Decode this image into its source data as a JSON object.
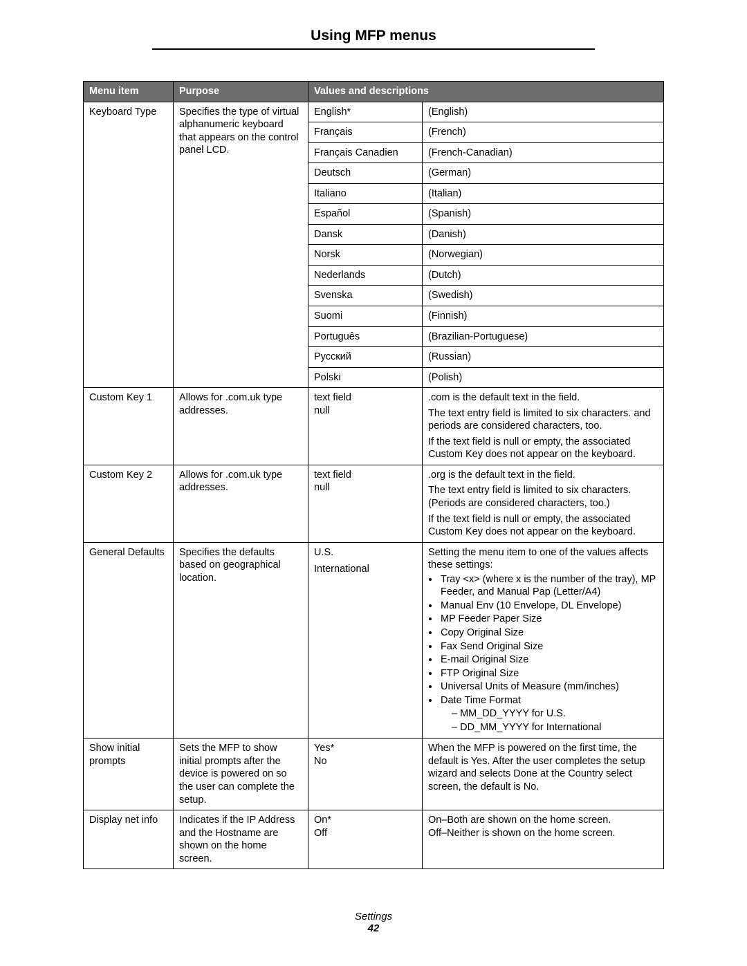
{
  "title": "Using MFP menus",
  "headers": {
    "menu_item": "Menu item",
    "purpose": "Purpose",
    "values": "Values and descriptions"
  },
  "rows": {
    "keyboard_type": {
      "menu_item": "Keyboard Type",
      "purpose": "Specifies the type of virtual alphanumeric keyboard that appears on the control panel LCD.",
      "langs": [
        {
          "value": "English*",
          "desc": "(English)"
        },
        {
          "value": "Français",
          "desc": "(French)"
        },
        {
          "value": "Français Canadien",
          "desc": "(French-Canadian)"
        },
        {
          "value": "Deutsch",
          "desc": "(German)"
        },
        {
          "value": "Italiano",
          "desc": "(Italian)"
        },
        {
          "value": "Español",
          "desc": "(Spanish)"
        },
        {
          "value": "Dansk",
          "desc": "(Danish)"
        },
        {
          "value": "Norsk",
          "desc": "(Norwegian)"
        },
        {
          "value": "Nederlands",
          "desc": "(Dutch)"
        },
        {
          "value": "Svenska",
          "desc": "(Swedish)"
        },
        {
          "value": "Suomi",
          "desc": "(Finnish)"
        },
        {
          "value": "Português",
          "desc": "(Brazilian-Portuguese)"
        },
        {
          "value": "Русский",
          "desc": "(Russian)"
        },
        {
          "value": "Polski",
          "desc": "(Polish)"
        }
      ]
    },
    "custom_key_1": {
      "menu_item": "Custom Key 1",
      "purpose": "Allows for .com.uk type addresses.",
      "values_line1": "text field",
      "values_line2": "null",
      "desc_p1": ".com is the default text in the field.",
      "desc_p2": "The text entry field is limited to six characters. and periods are considered characters, too.",
      "desc_p3": "If the text field is null or empty, the associated Custom Key does not appear on the keyboard."
    },
    "custom_key_2": {
      "menu_item": "Custom Key 2",
      "purpose": "Allows for .com.uk type addresses.",
      "values_line1": "text field",
      "values_line2": "null",
      "desc_p1": ".org is the default text in the field.",
      "desc_p2": "The text entry field is limited to six characters. (Periods are considered characters, too.)",
      "desc_p3": "If the text field is null or empty, the associated Custom Key does not appear on the keyboard."
    },
    "general_defaults": {
      "menu_item": "General Defaults",
      "purpose": "Specifies the defaults based on geographical location.",
      "values_line1": "U.S.",
      "values_line2": "International",
      "desc_intro": "Setting the menu item to one of the values affects these settings:",
      "bullets": [
        "Tray <x> (where x is the number of the tray), MP Feeder, and Manual Pap (Letter/A4)",
        "Manual Env (10 Envelope, DL Envelope)",
        "MP Feeder Paper Size",
        "Copy Original Size",
        "Fax Send Original Size",
        "E-mail Original Size",
        "FTP Original Size",
        "Universal Units of Measure (mm/inches)"
      ],
      "date_bullet": "Date Time Format",
      "date_sub1": "MM_DD_YYYY for U.S.",
      "date_sub2": "DD_MM_YYYY for International"
    },
    "show_initial": {
      "menu_item": "Show initial prompts",
      "purpose": "Sets the MFP to show initial prompts after the device is powered on so the user can complete the setup.",
      "values_line1": "Yes*",
      "values_line2": "No",
      "desc": "When the MFP is powered on the first time, the default is Yes. After the user completes the setup wizard and selects Done at the Country select screen, the default is No."
    },
    "display_net": {
      "menu_item": "Display net info",
      "purpose": "Indicates if the IP Address and the Hostname are shown on the home screen.",
      "values_line1": "On*",
      "values_line2": "Off",
      "desc_p1": "On–Both are shown on the home screen.",
      "desc_p2": "Off–Neither is shown on the home screen."
    }
  },
  "footer": {
    "label": "Settings",
    "page": "42"
  }
}
